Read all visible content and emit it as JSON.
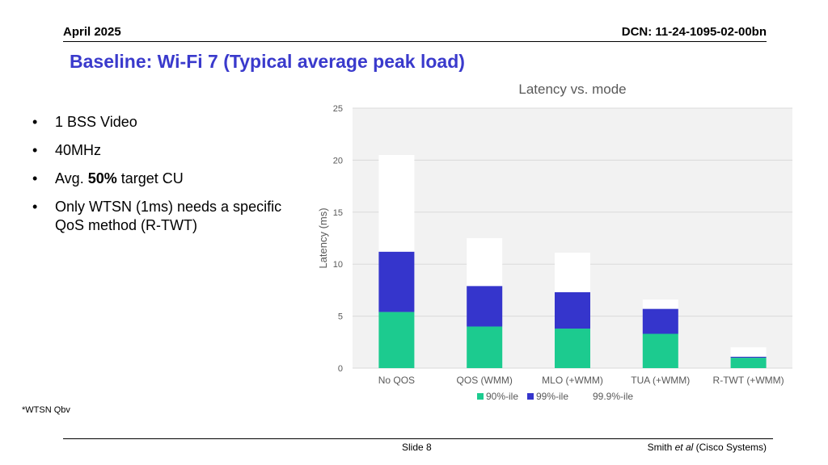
{
  "header": {
    "date": "April 2025",
    "dcn": "DCN: 11-24-1095-02-00bn"
  },
  "slide_title": "Baseline: Wi-Fi 7 (Typical average peak load)",
  "bullets": [
    {
      "pre": "1 BSS Video",
      "bold": "",
      "post": ""
    },
    {
      "pre": "40MHz",
      "bold": "",
      "post": ""
    },
    {
      "pre": "Avg. ",
      "bold": "50%",
      "post": " target CU"
    },
    {
      "pre": "Only WTSN (1ms) needs a specific QoS method (R-TWT)",
      "bold": "",
      "post": ""
    }
  ],
  "bullet_glyph": "•",
  "footnote": "*WTSN Qbv",
  "footer": {
    "slide": "Slide 8",
    "author_pre": "Smith ",
    "author_em": "et al",
    "author_post": " (Cisco Systems)"
  },
  "chart_data": {
    "type": "bar",
    "stacked": true,
    "title": "Latency vs. mode",
    "xlabel": "",
    "ylabel": "Latency (ms)",
    "ylim": [
      0,
      25
    ],
    "yticks": [
      0,
      5,
      10,
      15,
      20,
      25
    ],
    "grid": true,
    "legend_position": "bottom",
    "categories": [
      "No QOS",
      "QOS (WMM)",
      "MLO (+WMM)",
      "TUA (+WMM)",
      "R-TWT (+WMM)"
    ],
    "series": [
      {
        "name": "90%-ile",
        "color": "#1ccb8f",
        "values": [
          5.4,
          4.0,
          3.8,
          3.3,
          1.0
        ]
      },
      {
        "name": "99%-ile",
        "color": "#3535cc",
        "values": [
          5.8,
          3.9,
          3.5,
          2.4,
          0.1
        ]
      },
      {
        "name": "99.9%-ile",
        "color": "#ffffff",
        "values": [
          9.3,
          4.6,
          3.8,
          0.9,
          0.9
        ]
      }
    ]
  }
}
